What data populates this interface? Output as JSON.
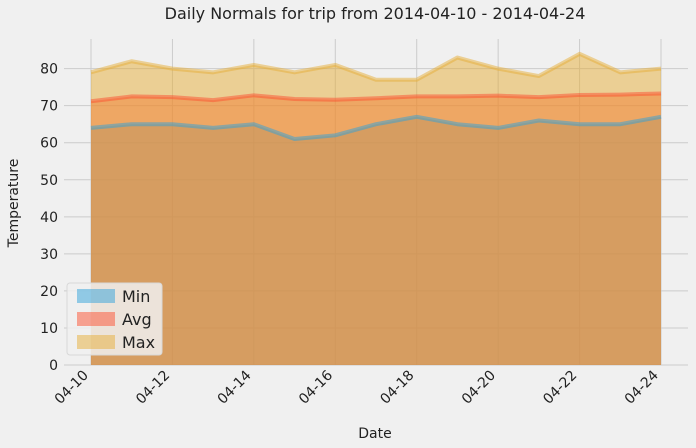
{
  "chart_data": {
    "type": "area",
    "title": "Daily Normals for trip from 2014-04-10 - 2014-04-24",
    "xlabel": "Date",
    "ylabel": "Temperature",
    "ylim": [
      0,
      88
    ],
    "yticks": [
      0,
      10,
      20,
      30,
      40,
      50,
      60,
      70,
      80
    ],
    "grid": true,
    "legend_position": "lower-left",
    "categories": [
      "04-10",
      "04-11",
      "04-12",
      "04-13",
      "04-14",
      "04-15",
      "04-16",
      "04-17",
      "04-18",
      "04-19",
      "04-20",
      "04-21",
      "04-22",
      "04-23",
      "04-24"
    ],
    "tick_labels": [
      "04-10",
      "04-12",
      "04-14",
      "04-16",
      "04-18",
      "04-20",
      "04-22",
      "04-24"
    ],
    "series": [
      {
        "name": "Min",
        "color": "#30a2da",
        "values": [
          64,
          65,
          65,
          64,
          65,
          61,
          62,
          65,
          67,
          65,
          64,
          66,
          65,
          65,
          67
        ]
      },
      {
        "name": "Avg",
        "color": "#fc4f30",
        "values": [
          71.2,
          72.5,
          72.3,
          71.5,
          72.8,
          71.8,
          71.6,
          72.0,
          72.5,
          72.5,
          72.7,
          72.3,
          72.9,
          73.0,
          73.3
        ]
      },
      {
        "name": "Max",
        "color": "#e5ae38",
        "values": [
          79,
          82,
          80,
          79,
          81,
          79,
          81,
          77,
          77,
          83,
          80,
          78,
          84,
          79,
          80
        ]
      }
    ]
  }
}
